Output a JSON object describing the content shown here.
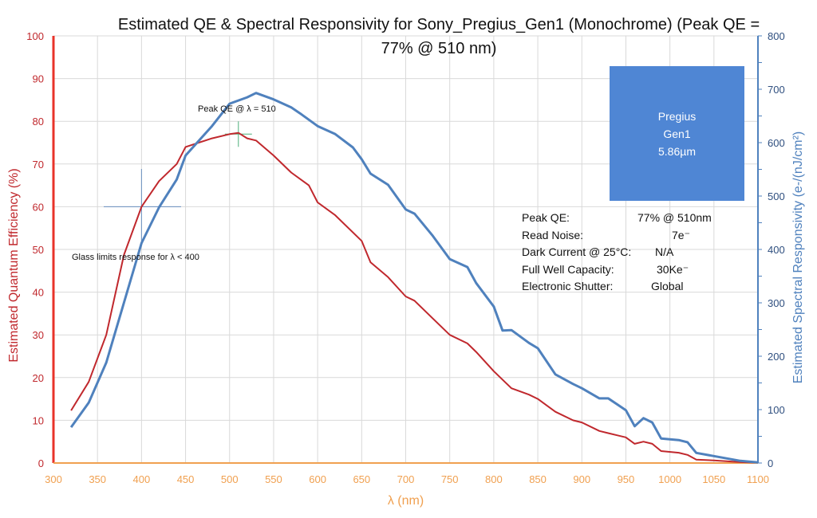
{
  "chart_data": {
    "type": "line",
    "title": "Estimated QE & Spectral Responsivity for Sony_Pregius_Gen1 (Monochrome) (Peak QE = 77% @ 510 nm)",
    "xlabel": "λ (nm)",
    "ylabel": "Estimated Quantum Efficiency (%)",
    "y2label": "Estimated Spectral Responsivity (e-/(nJ/cm²)",
    "xlim": [
      300,
      1100
    ],
    "ylim": [
      0,
      100
    ],
    "y2lim": [
      0,
      800
    ],
    "xticks": [
      300,
      350,
      400,
      450,
      500,
      550,
      600,
      650,
      700,
      750,
      800,
      850,
      900,
      950,
      1000,
      1050,
      1100
    ],
    "yticks": [
      0,
      10,
      20,
      30,
      40,
      50,
      60,
      70,
      80,
      90,
      100
    ],
    "y2ticks": [
      0,
      100,
      200,
      300,
      400,
      500,
      600,
      700,
      800
    ],
    "grid": true,
    "colors": {
      "qe": "#c0282d",
      "sr": "#4f81bd",
      "left_axis": "#e8332a",
      "x_axis": "#f0a050",
      "right_axis": "#4f81bd",
      "box": "#4f86d4",
      "peak_marker": "#4caf7a",
      "glass_marker": "#6a8fc0"
    },
    "series": [
      {
        "axis": "left",
        "x": [
          320,
          340,
          360,
          380,
          400,
          420,
          440,
          450,
          480,
          500,
          510,
          520,
          530,
          550,
          570,
          590,
          600,
          620,
          650,
          660,
          680,
          700,
          710,
          730,
          750,
          770,
          780,
          800,
          820,
          840,
          850,
          870,
          890,
          900,
          920,
          940,
          950,
          960,
          970,
          980,
          990,
          1010,
          1020,
          1030,
          1050,
          1080,
          1100
        ],
        "y": [
          12.3,
          19,
          30,
          48.7,
          60,
          66,
          70,
          74,
          76,
          77,
          77.3,
          76,
          75.5,
          72,
          68,
          65,
          61,
          58,
          52,
          47,
          43.5,
          39,
          38,
          34,
          30,
          28,
          26,
          21.5,
          17.5,
          16,
          15,
          12,
          10,
          9.5,
          7.5,
          6.5,
          6,
          4.5,
          5,
          4.5,
          2.8,
          2.4,
          1.9,
          0.8,
          0.6,
          0.2,
          0.1
        ]
      },
      {
        "axis": "right",
        "x": [
          320,
          340,
          360,
          380,
          400,
          420,
          440,
          450,
          480,
          500,
          520,
          530,
          550,
          570,
          580,
          600,
          620,
          640,
          650,
          660,
          680,
          700,
          710,
          730,
          750,
          770,
          780,
          800,
          810,
          820,
          840,
          850,
          870,
          890,
          900,
          920,
          930,
          950,
          960,
          970,
          980,
          990,
          1010,
          1020,
          1030,
          1050,
          1080,
          1100
        ],
        "y": [
          67,
          113,
          188,
          300,
          412,
          479,
          531,
          576,
          631,
          673,
          685,
          693,
          681,
          666,
          655,
          631,
          616,
          591,
          569,
          542,
          521,
          475,
          467,
          427,
          382,
          367,
          337,
          293,
          248,
          249,
          225,
          215,
          166,
          148,
          140,
          121,
          121,
          99,
          69,
          84,
          76,
          46,
          43,
          39,
          19,
          13,
          4,
          1
        ]
      }
    ],
    "annotations": [
      {
        "text": "Peak QE @ λ = 510",
        "x": 510,
        "y": 77
      },
      {
        "text": "Glass limits response for λ <  400",
        "x": 400,
        "y": 60
      }
    ],
    "info_box": {
      "lines": [
        "Pregius",
        "Gen1",
        "5.86µm"
      ]
    },
    "specs": [
      {
        "label": "Peak QE:",
        "value": "77% @ 510nm"
      },
      {
        "label": "Read Noise:",
        "value": "7e⁻"
      },
      {
        "label": "Dark Current @ 25°C:",
        "value": "N/A"
      },
      {
        "label": "Full Well Capacity:",
        "value": "30Ke⁻"
      },
      {
        "label": "Electronic Shutter:",
        "value": "Global"
      }
    ]
  }
}
